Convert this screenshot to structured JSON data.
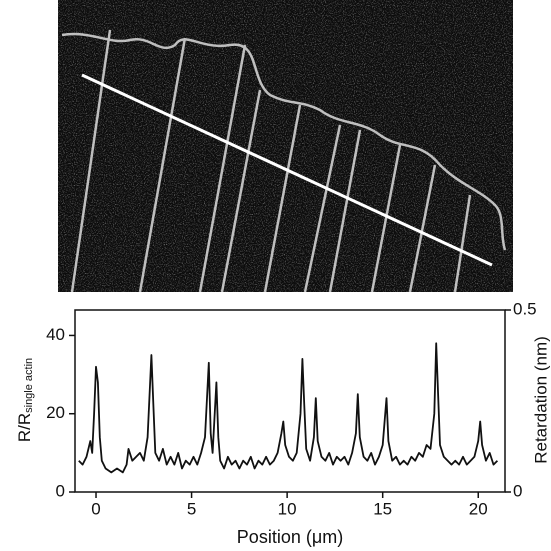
{
  "chart_data": {
    "type": "line",
    "xlabel": "Position (μm)",
    "ylabel": "R/R",
    "ylabel_sub": "single actin",
    "y2label": "Retardation (nm)",
    "color": "#111111",
    "grid": false,
    "xlim": [
      -1.1,
      21.4
    ],
    "xticks": [
      0,
      5,
      10,
      15,
      20
    ],
    "ylim": [
      0,
      46.5
    ],
    "yticks": [
      0,
      20,
      40
    ],
    "y2lim": [
      0,
      0.5
    ],
    "y2ticks": [
      0,
      0.5
    ],
    "x": [
      -0.9,
      -0.7,
      -0.5,
      -0.3,
      -0.2,
      -0.1,
      0,
      0.1,
      0.2,
      0.3,
      0.5,
      0.8,
      1.1,
      1.4,
      1.6,
      1.7,
      1.9,
      2.1,
      2.3,
      2.5,
      2.7,
      2.9,
      3.0,
      3.1,
      3.3,
      3.5,
      3.7,
      3.9,
      4.1,
      4.3,
      4.5,
      4.7,
      4.9,
      5.1,
      5.3,
      5.5,
      5.7,
      5.9,
      6.0,
      6.1,
      6.3,
      6.4,
      6.5,
      6.7,
      6.9,
      7.1,
      7.3,
      7.5,
      7.7,
      7.9,
      8.1,
      8.3,
      8.5,
      8.7,
      8.9,
      9.1,
      9.3,
      9.5,
      9.7,
      9.8,
      9.9,
      10.1,
      10.3,
      10.5,
      10.7,
      10.8,
      10.9,
      11.0,
      11.2,
      11.4,
      11.5,
      11.6,
      11.8,
      12.0,
      12.2,
      12.4,
      12.6,
      12.8,
      13.0,
      13.2,
      13.4,
      13.6,
      13.7,
      13.8,
      14.0,
      14.2,
      14.4,
      14.6,
      14.8,
      15.0,
      15.2,
      15.3,
      15.5,
      15.7,
      15.9,
      16.1,
      16.3,
      16.5,
      16.7,
      16.9,
      17.1,
      17.3,
      17.5,
      17.7,
      17.8,
      17.9,
      18.0,
      18.2,
      18.4,
      18.6,
      18.8,
      19.0,
      19.2,
      19.4,
      19.6,
      19.8,
      20.0,
      20.1,
      20.2,
      20.4,
      20.6,
      20.8,
      21.0
    ],
    "values": [
      8,
      7,
      9,
      13,
      10,
      20,
      32,
      28,
      14,
      8,
      6,
      5,
      6,
      5,
      7,
      11,
      8,
      9,
      10,
      8,
      14,
      35,
      22,
      10,
      8,
      11,
      7,
      9,
      7,
      10,
      6,
      8,
      7,
      9,
      7,
      10,
      14,
      33,
      15,
      10,
      28,
      14,
      8,
      6,
      9,
      7,
      8,
      6,
      8,
      7,
      9,
      6,
      8,
      7,
      9,
      7,
      8,
      10,
      15,
      18,
      12,
      9,
      8,
      10,
      20,
      34,
      22,
      11,
      8,
      14,
      24,
      13,
      9,
      8,
      10,
      7,
      9,
      8,
      9,
      7,
      10,
      15,
      25,
      14,
      9,
      8,
      10,
      7,
      9,
      12,
      24,
      13,
      8,
      9,
      7,
      8,
      7,
      9,
      8,
      10,
      9,
      12,
      11,
      20,
      38,
      25,
      12,
      9,
      8,
      7,
      8,
      7,
      9,
      7,
      8,
      9,
      13,
      18,
      12,
      8,
      10,
      7,
      8
    ]
  }
}
